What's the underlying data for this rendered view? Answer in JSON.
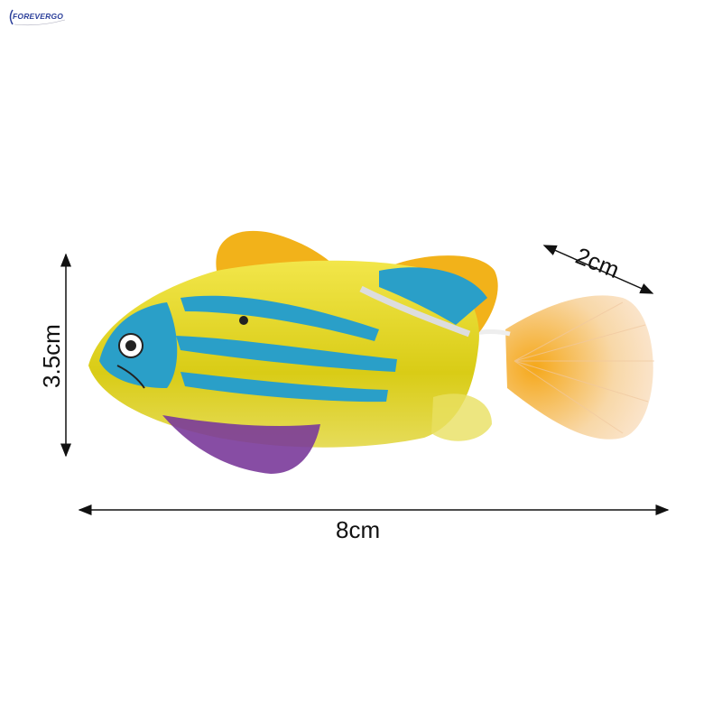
{
  "brand": {
    "logo_text": "FOREVERGO",
    "color": "#2b3f9a"
  },
  "dimensions": {
    "height_label": "3.5cm",
    "length_label": "8cm",
    "tail_label": "2cm"
  },
  "product": {
    "body_color": "#e8d81c",
    "stripe_color": "#2a9fc8",
    "fin_color": "#f2b21a",
    "belly_fin_color": "#7a3a9a",
    "tail_color": "#f6c889"
  }
}
